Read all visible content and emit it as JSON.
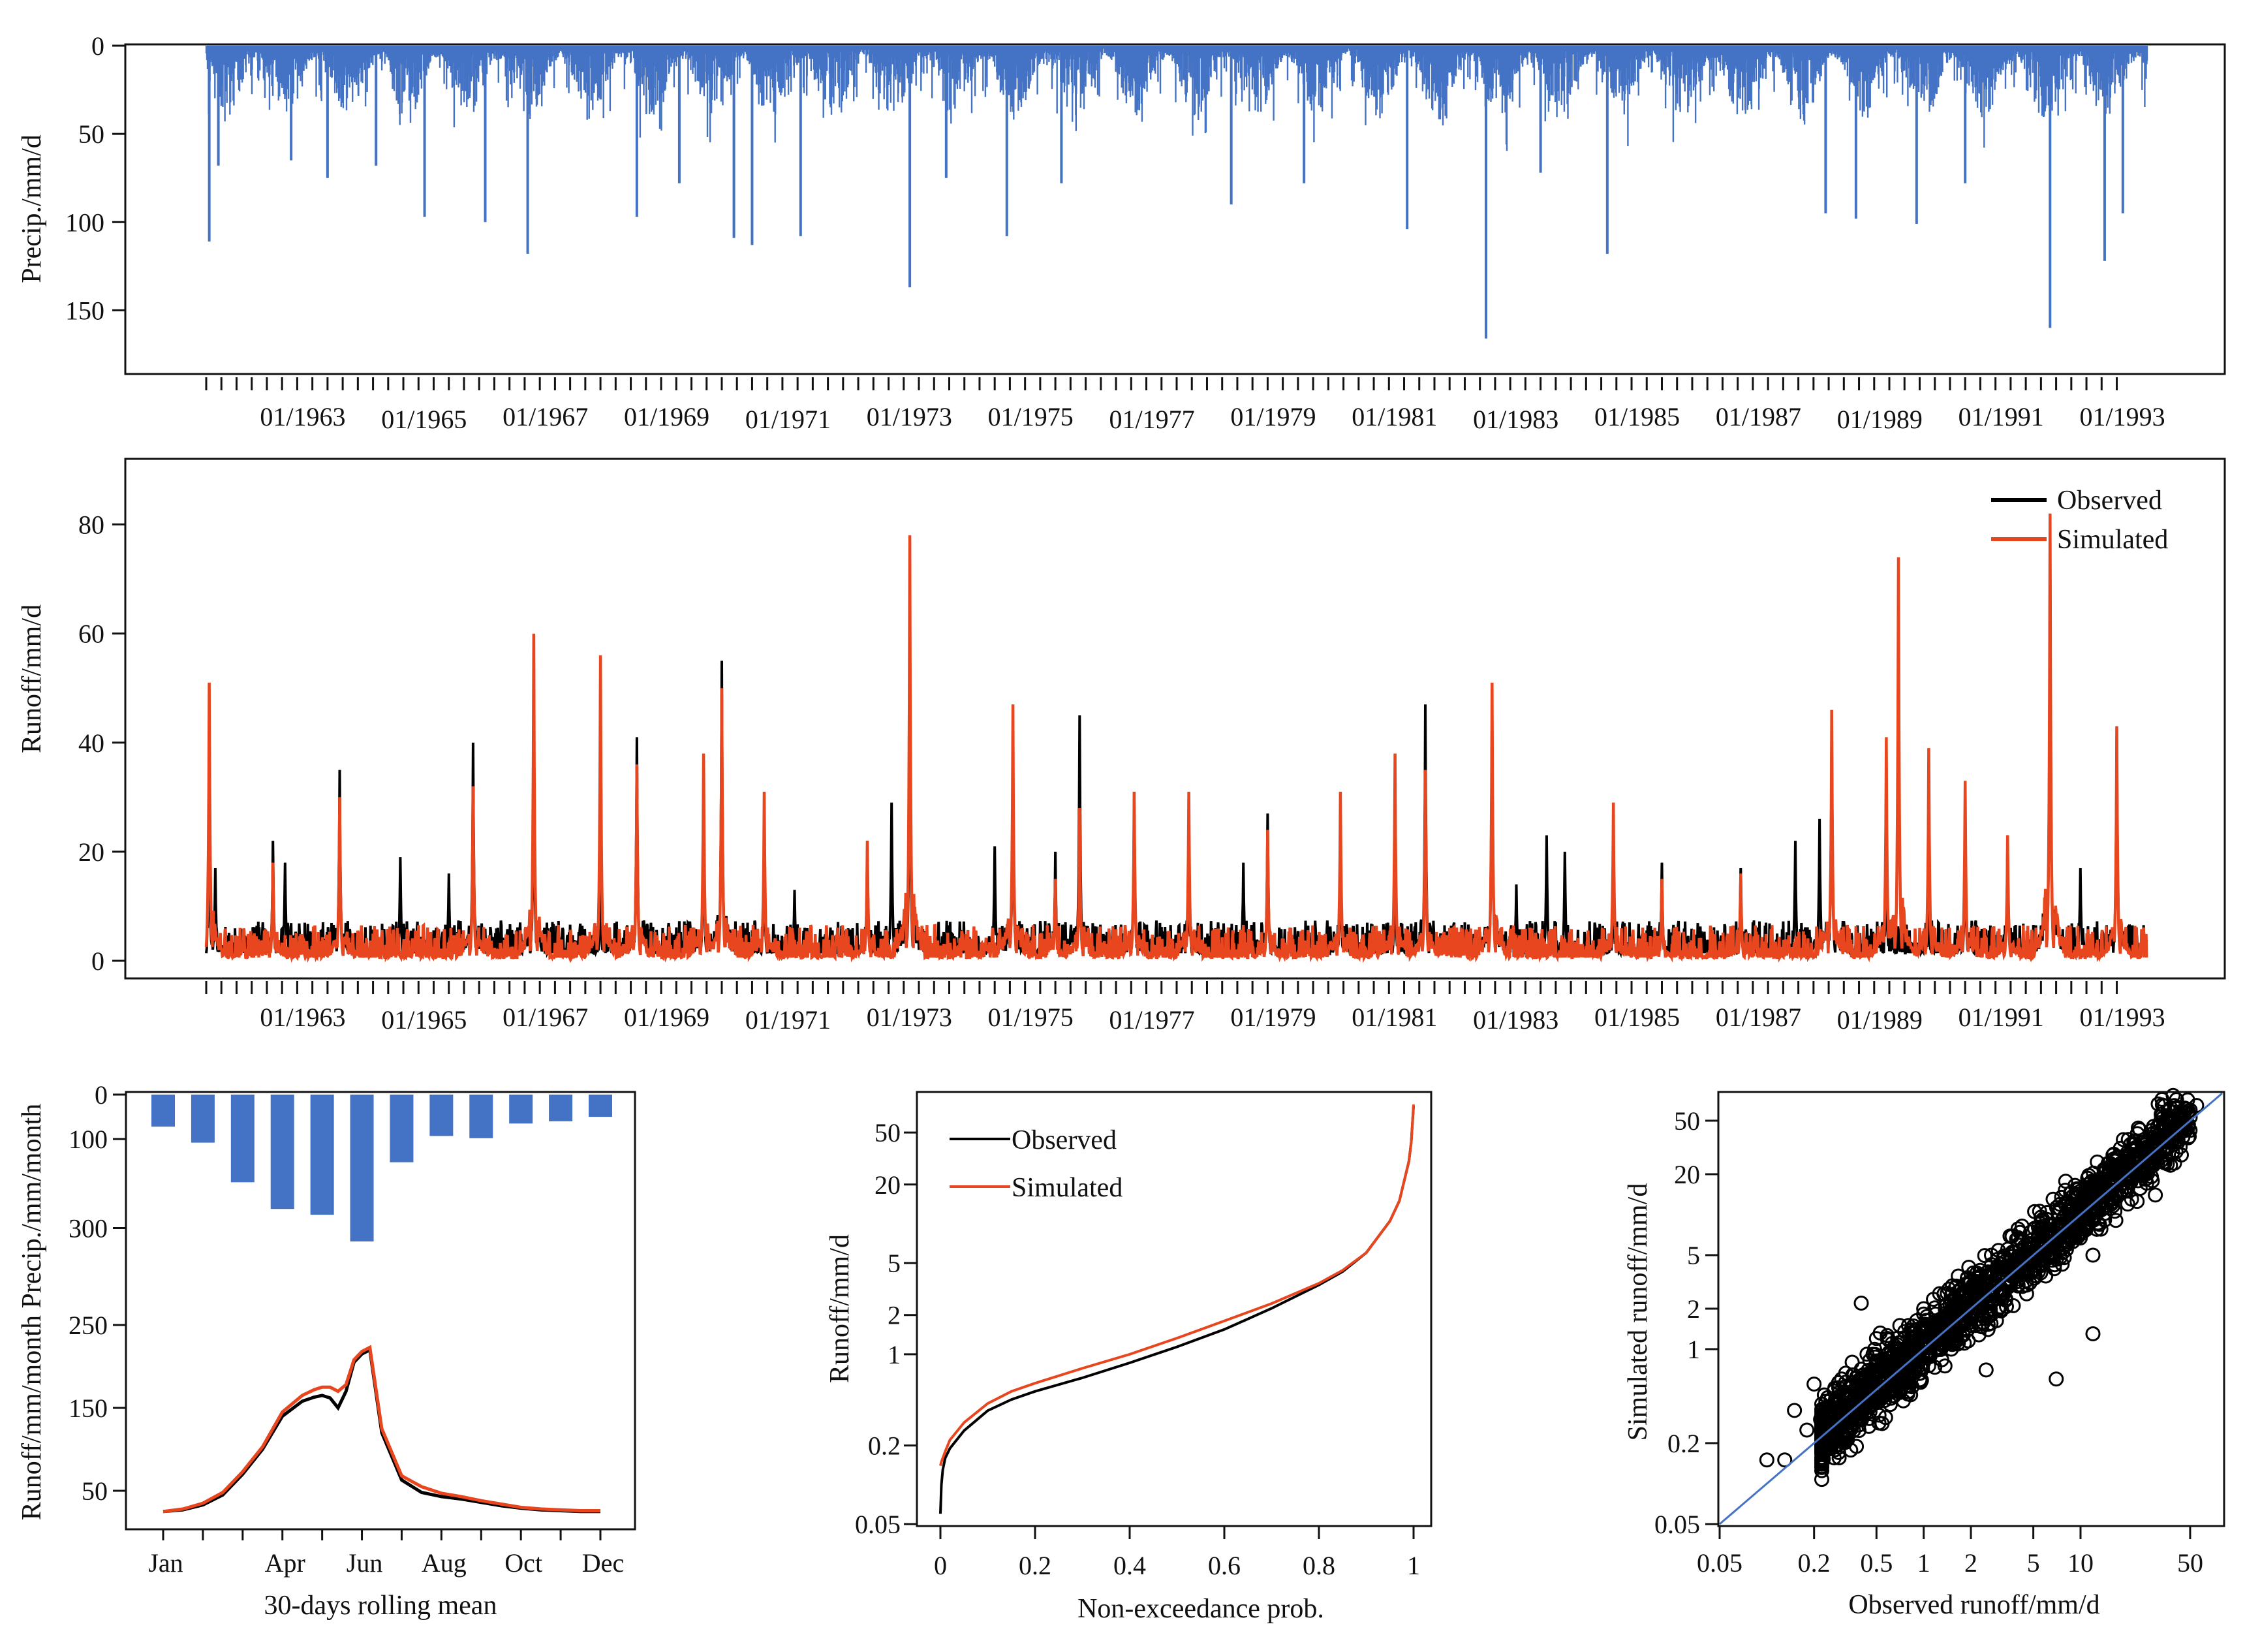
{
  "chart_data": [
    {
      "id": "precip_ts",
      "type": "bar",
      "title": "",
      "xlabel": "",
      "ylabel": "Precip./mm/d",
      "y_inverted": true,
      "ylim": [
        0,
        185
      ],
      "yticks": [
        0,
        50,
        100,
        150
      ],
      "period": [
        "01/1962",
        "12/1993"
      ],
      "x_tick_labels": [
        "01/1963",
        "01/1965",
        "01/1967",
        "01/1969",
        "01/1971",
        "01/1973",
        "01/1975",
        "01/1977",
        "01/1979",
        "01/1981",
        "01/1983",
        "01/1985",
        "01/1987",
        "01/1989",
        "01/1991",
        "01/1993"
      ],
      "color": "#4472C4",
      "peaks": [
        {
          "year": 1962.05,
          "value": 111
        },
        {
          "year": 1962.2,
          "value": 68
        },
        {
          "year": 1963.4,
          "value": 65
        },
        {
          "year": 1964.0,
          "value": 75
        },
        {
          "year": 1964.8,
          "value": 68
        },
        {
          "year": 1965.6,
          "value": 97
        },
        {
          "year": 1966.6,
          "value": 100
        },
        {
          "year": 1967.3,
          "value": 118
        },
        {
          "year": 1969.1,
          "value": 97
        },
        {
          "year": 1969.8,
          "value": 78
        },
        {
          "year": 1970.7,
          "value": 109
        },
        {
          "year": 1971.0,
          "value": 113
        },
        {
          "year": 1971.8,
          "value": 108
        },
        {
          "year": 1973.6,
          "value": 137
        },
        {
          "year": 1974.2,
          "value": 75
        },
        {
          "year": 1975.2,
          "value": 108
        },
        {
          "year": 1976.1,
          "value": 78
        },
        {
          "year": 1978.9,
          "value": 90
        },
        {
          "year": 1980.1,
          "value": 78
        },
        {
          "year": 1981.8,
          "value": 104
        },
        {
          "year": 1983.1,
          "value": 166
        },
        {
          "year": 1984.0,
          "value": 72
        },
        {
          "year": 1985.1,
          "value": 118
        },
        {
          "year": 1988.7,
          "value": 95
        },
        {
          "year": 1989.2,
          "value": 98
        },
        {
          "year": 1990.2,
          "value": 101
        },
        {
          "year": 1991.0,
          "value": 78
        },
        {
          "year": 1992.4,
          "value": 160
        },
        {
          "year": 1993.3,
          "value": 122
        },
        {
          "year": 1993.6,
          "value": 95
        }
      ]
    },
    {
      "id": "runoff_ts",
      "type": "line",
      "title": "",
      "xlabel": "",
      "ylabel": "Runoff/mm/d",
      "ylim": [
        0,
        90
      ],
      "yticks": [
        0,
        20,
        40,
        60,
        80
      ],
      "period": [
        "01/1962",
        "12/1993"
      ],
      "x_tick_labels": [
        "01/1963",
        "01/1965",
        "01/1967",
        "01/1969",
        "01/1971",
        "01/1973",
        "01/1975",
        "01/1977",
        "01/1979",
        "01/1981",
        "01/1983",
        "01/1985",
        "01/1987",
        "01/1989",
        "01/1991",
        "01/1993"
      ],
      "legend_position": "top-right",
      "series": [
        {
          "name": "Observed",
          "color": "#000000",
          "peaks": [
            [
              1962.05,
              27
            ],
            [
              1962.15,
              17
            ],
            [
              1963.1,
              22
            ],
            [
              1963.3,
              18
            ],
            [
              1964.2,
              35
            ],
            [
              1965.2,
              19
            ],
            [
              1966.0,
              16
            ],
            [
              1966.4,
              40
            ],
            [
              1967.4,
              40
            ],
            [
              1968.5,
              14
            ],
            [
              1969.1,
              41
            ],
            [
              1970.2,
              27
            ],
            [
              1970.5,
              55
            ],
            [
              1971.2,
              20
            ],
            [
              1971.7,
              13
            ],
            [
              1972.9,
              22
            ],
            [
              1973.3,
              29
            ],
            [
              1973.6,
              53
            ],
            [
              1975.0,
              21
            ],
            [
              1975.3,
              37
            ],
            [
              1976.0,
              20
            ],
            [
              1976.4,
              45
            ],
            [
              1977.3,
              31
            ],
            [
              1978.2,
              20
            ],
            [
              1979.1,
              18
            ],
            [
              1979.5,
              27
            ],
            [
              1980.7,
              21
            ],
            [
              1981.6,
              20
            ],
            [
              1982.1,
              47
            ],
            [
              1983.2,
              50
            ],
            [
              1983.6,
              14
            ],
            [
              1984.1,
              23
            ],
            [
              1984.4,
              20
            ],
            [
              1985.2,
              14
            ],
            [
              1986.0,
              18
            ],
            [
              1987.3,
              17
            ],
            [
              1988.2,
              22
            ],
            [
              1988.6,
              26
            ],
            [
              1988.8,
              45
            ],
            [
              1989.7,
              20
            ],
            [
              1990.4,
              10
            ],
            [
              1991.0,
              23
            ],
            [
              1991.7,
              23
            ],
            [
              1992.4,
              80
            ],
            [
              1992.9,
              17
            ],
            [
              1993.5,
              43
            ]
          ]
        },
        {
          "name": "Simulated",
          "color": "#E8461E",
          "peaks": [
            [
              1962.05,
              51
            ],
            [
              1963.1,
              18
            ],
            [
              1964.2,
              30
            ],
            [
              1966.4,
              32
            ],
            [
              1967.4,
              60
            ],
            [
              1968.5,
              56
            ],
            [
              1969.1,
              36
            ],
            [
              1970.2,
              38
            ],
            [
              1970.5,
              50
            ],
            [
              1971.2,
              31
            ],
            [
              1972.9,
              22
            ],
            [
              1973.6,
              78
            ],
            [
              1975.3,
              47
            ],
            [
              1976.0,
              15
            ],
            [
              1976.4,
              28
            ],
            [
              1977.3,
              31
            ],
            [
              1978.2,
              31
            ],
            [
              1979.5,
              24
            ],
            [
              1980.7,
              31
            ],
            [
              1981.6,
              38
            ],
            [
              1982.1,
              35
            ],
            [
              1983.2,
              51
            ],
            [
              1985.2,
              29
            ],
            [
              1986.0,
              15
            ],
            [
              1987.3,
              16
            ],
            [
              1988.8,
              46
            ],
            [
              1989.7,
              41
            ],
            [
              1989.9,
              74
            ],
            [
              1990.4,
              39
            ],
            [
              1991.0,
              33
            ],
            [
              1991.7,
              23
            ],
            [
              1992.4,
              82
            ],
            [
              1993.5,
              43
            ]
          ]
        }
      ]
    },
    {
      "id": "seasonal",
      "type": "bar+line",
      "title": "",
      "xlabel": "30-days rolling mean",
      "ylabel": "Runoff/mm/month Precip./mm/month",
      "categories": [
        "Jan",
        "Feb",
        "Mar",
        "Apr",
        "May",
        "Jun",
        "Jul",
        "Aug",
        "Sep",
        "Oct",
        "Nov",
        "Dec"
      ],
      "x_tick_labels": [
        "Jan",
        "Apr",
        "Jun",
        "Aug",
        "Oct",
        "Dec"
      ],
      "precip_bars": {
        "name": "Precipitation",
        "color": "#4472C4",
        "ylim_inverted": [
          0,
          330
        ],
        "yticks": [
          0,
          100,
          300
        ],
        "values": [
          72,
          108,
          197,
          257,
          270,
          330,
          152,
          93,
          98,
          65,
          60,
          50
        ]
      },
      "runoff_ylim": [
        15,
        300
      ],
      "runoff_yticks": [
        50,
        150,
        250
      ],
      "series": [
        {
          "name": "Observed",
          "color": "#000000",
          "x": [
            1,
            1.5,
            2,
            2.5,
            3,
            3.5,
            4,
            4.5,
            4.8,
            5,
            5.2,
            5.4,
            5.6,
            5.8,
            6,
            6.2,
            6.5,
            7,
            7.5,
            8,
            8.5,
            9,
            9.5,
            10,
            10.5,
            11,
            11.5,
            12
          ],
          "values": [
            25,
            27,
            33,
            45,
            70,
            100,
            140,
            158,
            163,
            165,
            162,
            150,
            170,
            205,
            215,
            220,
            120,
            63,
            48,
            43,
            40,
            36,
            32,
            29,
            27,
            26,
            25,
            25
          ]
        },
        {
          "name": "Simulated",
          "color": "#E8461E",
          "x": [
            1,
            1.5,
            2,
            2.5,
            3,
            3.5,
            4,
            4.5,
            4.8,
            5,
            5.2,
            5.4,
            5.6,
            5.8,
            6,
            6.2,
            6.5,
            7,
            7.5,
            8,
            8.5,
            9,
            9.5,
            10,
            10.5,
            11,
            11.5,
            12
          ],
          "values": [
            25,
            28,
            35,
            48,
            73,
            103,
            145,
            165,
            172,
            175,
            175,
            170,
            178,
            208,
            218,
            223,
            125,
            68,
            55,
            47,
            43,
            38,
            34,
            30,
            28,
            27,
            26,
            26
          ]
        }
      ]
    },
    {
      "id": "fdc",
      "type": "line",
      "title": "",
      "xlabel": "Non-exceedance prob.",
      "ylabel": "Runoff/mm/d",
      "y_scale": "log",
      "xlim": [
        0,
        1
      ],
      "ylim": [
        0.05,
        100
      ],
      "xticks": [
        0,
        0.2,
        0.4,
        0.6,
        0.8,
        1
      ],
      "yticks": [
        0.05,
        0.2,
        1,
        2,
        5,
        20,
        50
      ],
      "legend_position": "top-left",
      "series": [
        {
          "name": "Observed",
          "color": "#000000",
          "x": [
            0,
            0.002,
            0.005,
            0.01,
            0.02,
            0.05,
            0.1,
            0.15,
            0.2,
            0.3,
            0.4,
            0.5,
            0.6,
            0.7,
            0.8,
            0.85,
            0.9,
            0.95,
            0.97,
            0.99,
            0.995,
            1
          ],
          "values": [
            0.06,
            0.1,
            0.13,
            0.16,
            0.19,
            0.26,
            0.37,
            0.45,
            0.52,
            0.66,
            0.86,
            1.14,
            1.55,
            2.25,
            3.4,
            4.3,
            6,
            10.5,
            15,
            30,
            42,
            80
          ]
        },
        {
          "name": "Simulated",
          "color": "#E8461E",
          "x": [
            0,
            0.002,
            0.005,
            0.01,
            0.02,
            0.05,
            0.1,
            0.15,
            0.2,
            0.3,
            0.4,
            0.5,
            0.6,
            0.7,
            0.8,
            0.85,
            0.9,
            0.95,
            0.97,
            0.99,
            0.995,
            1
          ],
          "values": [
            0.14,
            0.15,
            0.16,
            0.18,
            0.22,
            0.3,
            0.42,
            0.52,
            0.6,
            0.78,
            1.0,
            1.33,
            1.8,
            2.45,
            3.5,
            4.4,
            6,
            10.5,
            15,
            30,
            42,
            82
          ]
        }
      ]
    },
    {
      "id": "scatter",
      "type": "scatter",
      "title": "",
      "xlabel": "Observed runoff/mm/d",
      "ylabel": "Simulated runoff/mm/d",
      "x_scale": "log",
      "y_scale": "log",
      "xlim": [
        0.05,
        80
      ],
      "ylim": [
        0.05,
        80
      ],
      "xticks": [
        0.05,
        0.2,
        0.5,
        1,
        2,
        5,
        10,
        50
      ],
      "yticks": [
        0.05,
        0.2,
        1,
        2,
        5,
        20,
        50
      ],
      "one_to_one_line": {
        "color": "#4472C4"
      },
      "points": [
        [
          0.15,
          0.35
        ],
        [
          0.18,
          0.25
        ],
        [
          0.2,
          0.55
        ],
        [
          0.22,
          0.3
        ],
        [
          0.25,
          0.2
        ],
        [
          0.3,
          0.6
        ],
        [
          0.3,
          0.35
        ],
        [
          0.35,
          0.8
        ],
        [
          0.4,
          0.35
        ],
        [
          0.45,
          0.65
        ],
        [
          0.5,
          1.2
        ],
        [
          0.5,
          0.4
        ],
        [
          0.6,
          0.5
        ],
        [
          0.7,
          1.0
        ],
        [
          0.8,
          1.5
        ],
        [
          0.8,
          0.6
        ],
        [
          1.0,
          0.8
        ],
        [
          1.0,
          2.0
        ],
        [
          1.2,
          1.0
        ],
        [
          1.5,
          2.5
        ],
        [
          1.5,
          1.0
        ],
        [
          2.0,
          1.5
        ],
        [
          2.0,
          3.2
        ],
        [
          2.5,
          1.8
        ],
        [
          3.0,
          4.0
        ],
        [
          3.0,
          2.0
        ],
        [
          4.0,
          3.0
        ],
        [
          4.0,
          6.0
        ],
        [
          5.0,
          4.5
        ],
        [
          6.0,
          8.0
        ],
        [
          6.0,
          3.5
        ],
        [
          8.0,
          7.0
        ],
        [
          10,
          9
        ],
        [
          10,
          15
        ],
        [
          12,
          5
        ],
        [
          15,
          14
        ],
        [
          20,
          25
        ],
        [
          20,
          12
        ],
        [
          25,
          20
        ],
        [
          30,
          35
        ],
        [
          35,
          28
        ],
        [
          40,
          50
        ],
        [
          45,
          38
        ],
        [
          50,
          60
        ],
        [
          55,
          65
        ],
        [
          7,
          0.6
        ],
        [
          0.4,
          2.2
        ],
        [
          12,
          1.3
        ],
        [
          2.5,
          0.7
        ],
        [
          0.13,
          0.15
        ],
        [
          0.1,
          0.15
        ],
        [
          30,
          14
        ],
        [
          22,
          30
        ]
      ]
    }
  ]
}
